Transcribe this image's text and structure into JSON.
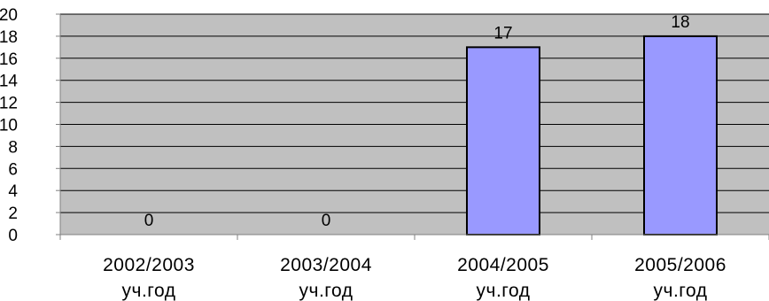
{
  "chart_data": {
    "type": "bar",
    "categories": [
      [
        "2002/2003",
        "уч.год"
      ],
      [
        "2003/2004",
        "уч.год"
      ],
      [
        "2004/2005",
        "уч.год"
      ],
      [
        "2005/2006",
        "уч.год"
      ]
    ],
    "values": [
      0,
      0,
      17,
      18
    ],
    "data_labels": [
      "0",
      "0",
      "17",
      "18"
    ],
    "ylim": [
      0,
      20
    ],
    "y_ticks": [
      0,
      2,
      4,
      6,
      8,
      10,
      12,
      14,
      16,
      18,
      20
    ],
    "title": "",
    "xlabel": "",
    "ylabel": "",
    "grid": true,
    "legend": "none",
    "colors": {
      "plot_background": "#c0c0c0",
      "bar_fill": "#9999ff",
      "bar_stroke": "#000000",
      "gridline": "#000000",
      "axis": "#808080"
    }
  }
}
